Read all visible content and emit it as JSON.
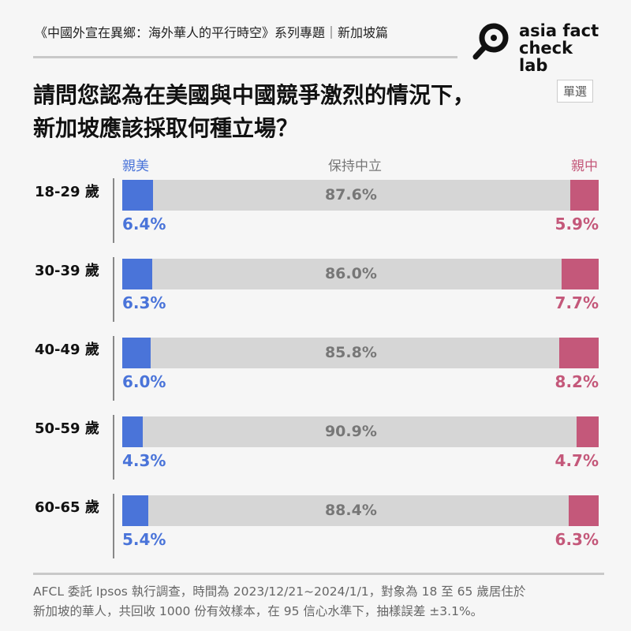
{
  "header": {
    "series_title": "《中國外宣在異鄉：海外華人的平行時空》系列專題｜新加坡篇",
    "logo_text": [
      "asia fact",
      "check lab"
    ]
  },
  "question": {
    "line1": "請問您認為在美國與中國競爭激烈的情況下，",
    "line2": "新加坡應該採取何種立場？",
    "badge": "單選"
  },
  "colors": {
    "pro_us": "#4a74d9",
    "neutral": "#d6d6d6",
    "pro_china": "#c4587a"
  },
  "chart_data": {
    "type": "bar",
    "stacked": true,
    "orientation": "horizontal",
    "categories": [
      "18-29 歲",
      "30-39 歲",
      "40-49 歲",
      "50-59 歲",
      "60-65 歲"
    ],
    "series": [
      {
        "name": "親美",
        "values": [
          6.4,
          6.3,
          6.0,
          4.3,
          5.4
        ]
      },
      {
        "name": "保持中立",
        "values": [
          87.6,
          86.0,
          85.8,
          90.9,
          88.4
        ]
      },
      {
        "name": "親中",
        "values": [
          5.9,
          7.7,
          8.2,
          4.7,
          6.3
        ]
      }
    ],
    "unit": "%"
  },
  "footnote": {
    "line1": "AFCL 委託 Ipsos 執行調查，時間為 2023/12/21~2024/1/1，對象為 18 至 65 歲居住於",
    "line2": "新加坡的華人，共回收 1000 份有效樣本，在 95 信心水準下，抽樣誤差 ±3.1%。"
  }
}
